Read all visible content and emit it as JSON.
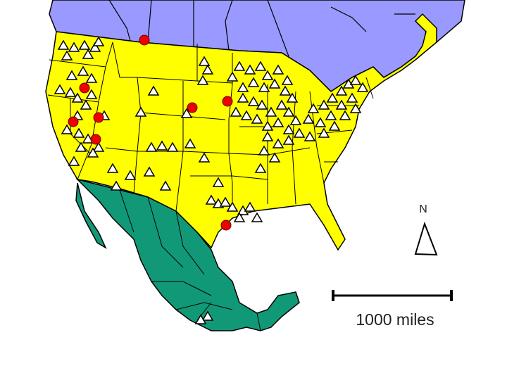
{
  "map": {
    "colors": {
      "canada": "#9999ff",
      "united_states": "#ffff00",
      "mexico": "#119977",
      "site_marker_red": "#ee0000",
      "site_marker_triangle": "#ffffff",
      "border": "#000000"
    },
    "marker_types": [
      "red-circle",
      "white-triangle"
    ]
  },
  "north_arrow": {
    "label": "N"
  },
  "scale_bar": {
    "label": "1000 miles"
  }
}
